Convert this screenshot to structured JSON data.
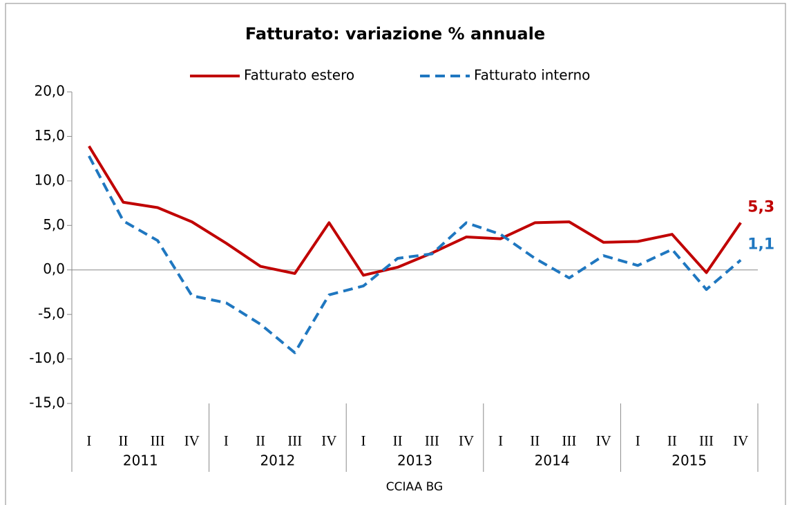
{
  "chart_data": {
    "type": "line",
    "title": "Fatturato: variazione  % annuale",
    "source": "CCIAA BG",
    "categories": [
      "I",
      "II",
      "III",
      "IV",
      "I",
      "II",
      "III",
      "IV",
      "I",
      "II",
      "III",
      "IV",
      "I",
      "II",
      "III",
      "IV",
      "I",
      "II",
      "III",
      "IV"
    ],
    "groups": [
      "2011",
      "2012",
      "2013",
      "2014",
      "2015"
    ],
    "series": [
      {
        "name": "Fatturato estero",
        "color": "#c00000",
        "dash": false,
        "values": [
          13.9,
          7.6,
          7.0,
          5.4,
          3.0,
          0.4,
          -0.4,
          5.3,
          -0.6,
          0.3,
          1.9,
          3.7,
          3.5,
          5.3,
          5.4,
          3.1,
          3.2,
          4.0,
          -0.3,
          5.3
        ],
        "value_labels": [
          null,
          null,
          null,
          null,
          null,
          null,
          null,
          null,
          null,
          null,
          null,
          null,
          null,
          null,
          null,
          null,
          null,
          null,
          null,
          "5,3"
        ]
      },
      {
        "name": "Fatturato interno",
        "color": "#1f77c0",
        "dash": true,
        "values": [
          12.8,
          5.5,
          3.3,
          -2.9,
          -3.7,
          -6.1,
          -9.3,
          -2.8,
          -1.8,
          1.3,
          1.8,
          5.3,
          4.0,
          1.3,
          -0.9,
          1.6,
          0.5,
          2.3,
          -2.2,
          1.1
        ],
        "value_labels": [
          null,
          null,
          null,
          null,
          null,
          null,
          null,
          null,
          null,
          null,
          null,
          null,
          null,
          null,
          null,
          null,
          null,
          null,
          null,
          "1,1"
        ]
      }
    ],
    "ylim": [
      -15,
      20
    ],
    "yticks": [
      {
        "value": -15,
        "label": "-15,0"
      },
      {
        "value": -10,
        "label": "-10,0"
      },
      {
        "value": -5,
        "label": "-5,0"
      },
      {
        "value": 0,
        "label": "0,0"
      },
      {
        "value": 5,
        "label": "5,0"
      },
      {
        "value": 10,
        "label": "10,0"
      },
      {
        "value": 15,
        "label": "15,0"
      },
      {
        "value": 20,
        "label": "20,0"
      }
    ],
    "legend": "top",
    "grid": false
  }
}
